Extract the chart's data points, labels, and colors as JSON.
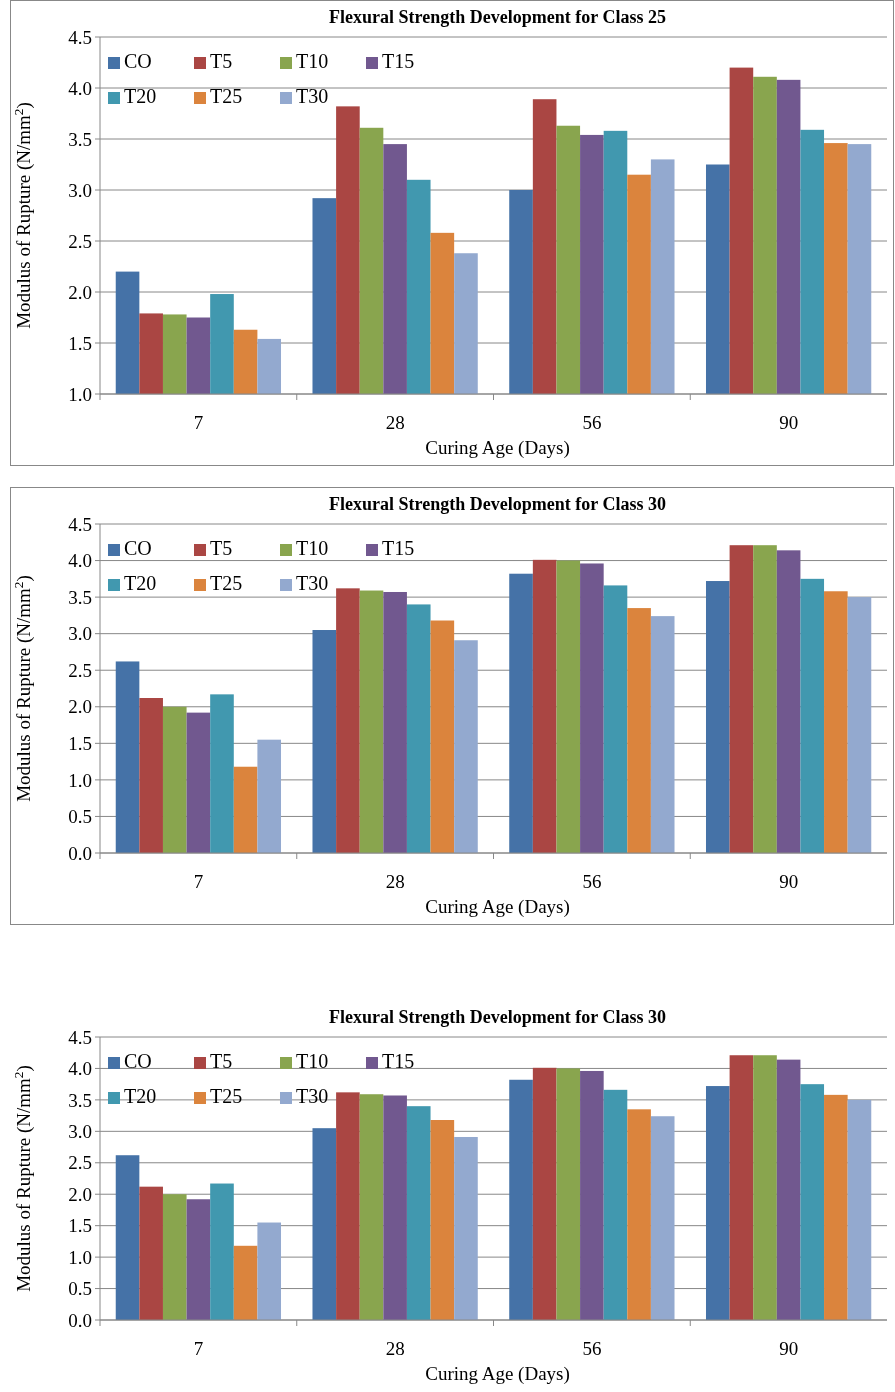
{
  "chart_data": [
    {
      "type": "bar",
      "title": "Flexural Strength Development for Class 25",
      "xlabel": "Curing Age (Days)",
      "ylabel": "Modulus of Rupture  (N/mm$^{2}$)",
      "categories": [
        "7",
        "28",
        "56",
        "90"
      ],
      "series": [
        {
          "name": "CO",
          "color": "#4572a7",
          "values": [
            2.2,
            2.92,
            3.0,
            3.25
          ]
        },
        {
          "name": "T5",
          "color": "#aa4643",
          "values": [
            1.79,
            3.82,
            3.89,
            4.2
          ]
        },
        {
          "name": "T10",
          "color": "#89a54e",
          "values": [
            1.78,
            3.61,
            3.63,
            4.11
          ]
        },
        {
          "name": "T15",
          "color": "#71588f",
          "values": [
            1.75,
            3.45,
            3.54,
            4.08
          ]
        },
        {
          "name": "T20",
          "color": "#4198af",
          "values": [
            1.98,
            3.1,
            3.58,
            3.59
          ]
        },
        {
          "name": "T25",
          "color": "#db843d",
          "values": [
            1.63,
            2.58,
            3.15,
            3.46
          ]
        },
        {
          "name": "T30",
          "color": "#93a9cf",
          "values": [
            1.54,
            2.38,
            3.3,
            3.45
          ]
        }
      ],
      "ylim": [
        1,
        4.5
      ],
      "yticks": [
        {
          "value": 1,
          "label": "1.0"
        },
        1.5,
        {
          "value": 2,
          "label": "2.0"
        },
        2.5,
        {
          "value": 3,
          "label": "3.0"
        },
        3.5,
        {
          "value": 4,
          "label": "4.0"
        },
        4.5
      ],
      "grid": "y",
      "legend": "top left"
    },
    {
      "type": "bar",
      "title": "Flexural Strength Development  for Class 30",
      "xlabel": "Curing Age (Days)",
      "ylabel": "Modulus of Rupture  (N/mm$^{2}$)",
      "categories": [
        "7",
        "28",
        "56",
        "90"
      ],
      "series": [
        {
          "name": "CO",
          "color": "#4572a7",
          "values": [
            2.62,
            3.05,
            3.82,
            3.72
          ]
        },
        {
          "name": "T5",
          "color": "#aa4643",
          "values": [
            2.12,
            3.62,
            4.01,
            4.21
          ]
        },
        {
          "name": "T10",
          "color": "#89a54e",
          "values": [
            2.0,
            3.59,
            4.0,
            4.21
          ]
        },
        {
          "name": "T15",
          "color": "#71588f",
          "values": [
            1.92,
            3.57,
            3.96,
            4.14
          ]
        },
        {
          "name": "T20",
          "color": "#4198af",
          "values": [
            2.17,
            3.4,
            3.66,
            3.75
          ]
        },
        {
          "name": "T25",
          "color": "#db843d",
          "values": [
            1.18,
            3.18,
            3.35,
            3.58
          ]
        },
        {
          "name": "T30",
          "color": "#93a9cf",
          "values": [
            1.55,
            2.91,
            3.24,
            3.5
          ]
        }
      ],
      "ylim": [
        0,
        4.5
      ],
      "yticks": [
        {
          "value": 0,
          "label": "0.0"
        },
        0.5,
        {
          "value": 1,
          "label": "1.0"
        },
        1.5,
        {
          "value": 2,
          "label": "2.0"
        },
        2.5,
        {
          "value": 3,
          "label": "3.0"
        },
        3.5,
        {
          "value": 4,
          "label": "4.0"
        },
        4.5
      ],
      "grid": "y",
      "legend": "top left"
    },
    {
      "type": "bar",
      "title": "Flexural Strength Development  for Class 30",
      "xlabel": "Curing Age (Days)",
      "ylabel": "Modulus of Rupture  (N/mm$^{2}$)",
      "categories": [
        "7",
        "28",
        "56",
        "90"
      ],
      "series": [
        {
          "name": "CO",
          "color": "#4572a7",
          "values": [
            2.62,
            3.05,
            3.82,
            3.72
          ]
        },
        {
          "name": "T5",
          "color": "#aa4643",
          "values": [
            2.12,
            3.62,
            4.01,
            4.21
          ]
        },
        {
          "name": "T10",
          "color": "#89a54e",
          "values": [
            2.0,
            3.59,
            4.0,
            4.21
          ]
        },
        {
          "name": "T15",
          "color": "#71588f",
          "values": [
            1.92,
            3.57,
            3.96,
            4.14
          ]
        },
        {
          "name": "T20",
          "color": "#4198af",
          "values": [
            2.17,
            3.4,
            3.66,
            3.75
          ]
        },
        {
          "name": "T25",
          "color": "#db843d",
          "values": [
            1.18,
            3.18,
            3.35,
            3.58
          ]
        },
        {
          "name": "T30",
          "color": "#93a9cf",
          "values": [
            1.55,
            2.91,
            3.24,
            3.5
          ]
        }
      ],
      "ylim": [
        0,
        4.5
      ],
      "yticks": [
        {
          "value": 0,
          "label": "0.0"
        },
        0.5,
        {
          "value": 1,
          "label": "1.0"
        },
        1.5,
        {
          "value": 2,
          "label": "2.0"
        },
        2.5,
        {
          "value": 3,
          "label": "3.0"
        },
        3.5,
        {
          "value": 4,
          "label": "4.0"
        },
        4.5
      ],
      "grid": "y",
      "legend": "top left"
    }
  ]
}
